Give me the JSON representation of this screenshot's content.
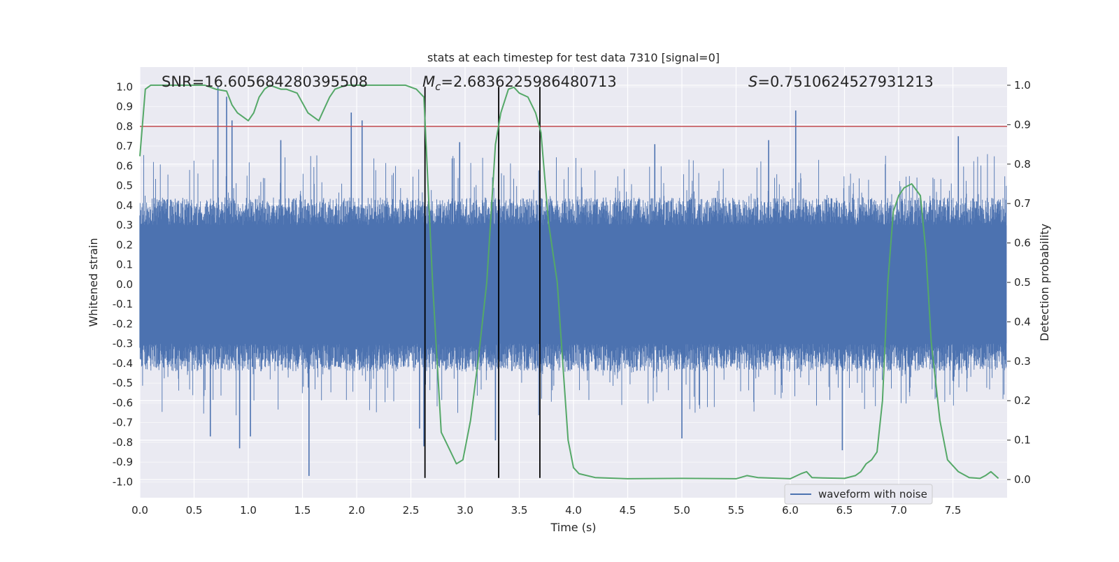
{
  "chart_data": {
    "type": "line",
    "title": "stats at each timestep for test data 7310 [signal=0]",
    "xlabel": "Time (s)",
    "ylabel_left": "Whitened strain",
    "ylabel_right": "Detection probability",
    "xlim": [
      0.0,
      8.0
    ],
    "ylim_left": [
      -1.08,
      1.1
    ],
    "ylim_right": [
      -0.046,
      1.046
    ],
    "x_ticks": [
      "0.0",
      "0.5",
      "1.0",
      "1.5",
      "2.0",
      "2.5",
      "3.0",
      "3.5",
      "4.0",
      "4.5",
      "5.0",
      "5.5",
      "6.0",
      "6.5",
      "7.0",
      "7.5"
    ],
    "left_ticks": [
      "1.0",
      "0.9",
      "0.8",
      "0.7",
      "0.6",
      "0.5",
      "0.4",
      "0.3",
      "0.2",
      "0.1",
      "0.0",
      "-0.1",
      "-0.2",
      "-0.3",
      "-0.4",
      "-0.5",
      "-0.6",
      "-0.7",
      "-0.8",
      "-0.9",
      "-1.0"
    ],
    "right_ticks": [
      "1.0",
      "0.9",
      "0.8",
      "0.7",
      "0.6",
      "0.5",
      "0.4",
      "0.3",
      "0.2",
      "0.1",
      "0.0"
    ],
    "stats": {
      "snr_text": "SNR=16.605684280395508",
      "mc_symbol": "M",
      "mc_sub": "c",
      "mc_value": "=2.6836225986480713",
      "s_symbol": "S",
      "s_value": "=0.7510624527931213"
    },
    "threshold": {
      "y": 0.8,
      "color": "#c44e52"
    },
    "vertical_lines_x": [
      2.63,
      3.31,
      3.69
    ],
    "series": [
      {
        "name": "waveform with noise",
        "axis": "left",
        "color": "#4c72b0",
        "description_envelope_typical": 0.4,
        "spikes": [
          [
            0.72,
            1.0
          ],
          [
            0.8,
            0.95
          ],
          [
            0.85,
            0.83
          ],
          [
            1.95,
            0.87
          ],
          [
            2.05,
            0.83
          ],
          [
            6.05,
            0.88
          ],
          [
            0.92,
            -0.83
          ],
          [
            1.56,
            -0.97
          ],
          [
            2.58,
            -0.73
          ],
          [
            2.62,
            -0.82
          ],
          [
            3.28,
            -0.79
          ],
          [
            6.48,
            -0.84
          ],
          [
            1.02,
            -0.77
          ],
          [
            0.65,
            -0.77
          ],
          [
            5.0,
            -0.78
          ],
          [
            1.3,
            0.73
          ],
          [
            2.95,
            0.72
          ],
          [
            5.8,
            0.73
          ],
          [
            7.55,
            0.75
          ],
          [
            4.75,
            0.71
          ]
        ]
      },
      {
        "name": "",
        "axis": "right",
        "color": "#55a868",
        "x": [
          0.0,
          0.05,
          0.1,
          0.2,
          0.4,
          0.6,
          0.7,
          0.8,
          0.85,
          0.9,
          0.95,
          1.0,
          1.05,
          1.1,
          1.15,
          1.2,
          1.3,
          1.35,
          1.45,
          1.55,
          1.6,
          1.65,
          1.7,
          1.75,
          1.8,
          1.9,
          2.0,
          2.2,
          2.45,
          2.55,
          2.62,
          2.7,
          2.78,
          2.85,
          2.92,
          2.98,
          3.05,
          3.12,
          3.2,
          3.28,
          3.33,
          3.4,
          3.45,
          3.5,
          3.58,
          3.65,
          3.7,
          3.77,
          3.85,
          3.9,
          3.95,
          4.0,
          4.05,
          4.2,
          4.5,
          5.0,
          5.5,
          5.6,
          5.7,
          6.0,
          6.1,
          6.15,
          6.2,
          6.3,
          6.5,
          6.6,
          6.65,
          6.7,
          6.75,
          6.8,
          6.85,
          6.9,
          6.95,
          7.0,
          7.05,
          7.12,
          7.2,
          7.25,
          7.3,
          7.38,
          7.45,
          7.55,
          7.65,
          7.75,
          7.8,
          7.85,
          7.92
        ],
        "values": [
          0.82,
          0.99,
          1.0,
          1.0,
          1.0,
          1.0,
          0.99,
          0.985,
          0.95,
          0.93,
          0.92,
          0.91,
          0.93,
          0.97,
          0.99,
          1.0,
          0.99,
          0.99,
          0.98,
          0.93,
          0.92,
          0.91,
          0.94,
          0.97,
          0.99,
          1.0,
          1.0,
          1.0,
          1.0,
          0.99,
          0.97,
          0.5,
          0.12,
          0.08,
          0.04,
          0.05,
          0.15,
          0.3,
          0.5,
          0.85,
          0.93,
          0.99,
          0.995,
          0.98,
          0.97,
          0.93,
          0.88,
          0.65,
          0.5,
          0.3,
          0.1,
          0.03,
          0.015,
          0.005,
          0.002,
          0.003,
          0.002,
          0.01,
          0.005,
          0.002,
          0.015,
          0.02,
          0.005,
          0.004,
          0.003,
          0.01,
          0.02,
          0.04,
          0.05,
          0.07,
          0.2,
          0.5,
          0.68,
          0.72,
          0.74,
          0.75,
          0.72,
          0.58,
          0.35,
          0.15,
          0.05,
          0.02,
          0.005,
          0.003,
          0.01,
          0.02,
          0.003
        ]
      }
    ],
    "legend": {
      "entries": [
        "waveform with noise"
      ],
      "placement": "lower-right"
    },
    "grid": true
  }
}
